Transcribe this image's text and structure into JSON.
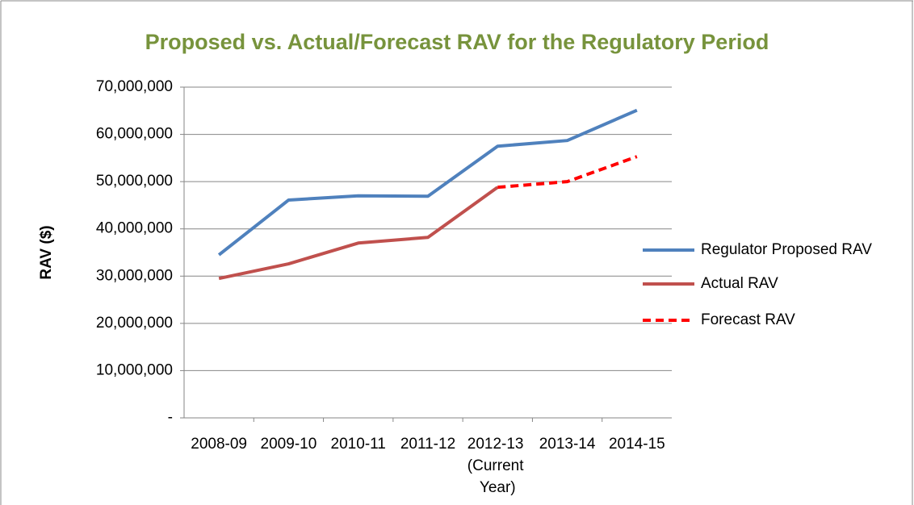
{
  "chart_data": {
    "type": "line",
    "title": "Proposed vs. Actual/Forecast RAV for the Regulatory Period",
    "y_label": "RAV ($)",
    "categories": [
      "2008-09",
      "2009-10",
      "2010-11",
      "2011-12",
      "2012-13 (Current Year)",
      "2013-14",
      "2014-15"
    ],
    "series": [
      {
        "name": "Regulator Proposed RAV",
        "color": "#4f81bd",
        "dashed": false,
        "values": [
          34500000,
          46100000,
          47000000,
          46900000,
          57500000,
          58700000,
          65100000
        ]
      },
      {
        "name": "Actual RAV",
        "color": "#c0504d",
        "dashed": false,
        "values": [
          29500000,
          32600000,
          37000000,
          38200000,
          48800000,
          null,
          null
        ]
      },
      {
        "name": "Forecast RAV",
        "color": "#ff0000",
        "dashed": true,
        "values": [
          null,
          null,
          null,
          null,
          48800000,
          50000000,
          55300000
        ]
      }
    ],
    "ylim": [
      0,
      70000000
    ],
    "yticks": [
      {
        "value": 0,
        "label": "-"
      },
      {
        "value": 10000000,
        "label": "10,000,000"
      },
      {
        "value": 20000000,
        "label": "20,000,000"
      },
      {
        "value": 30000000,
        "label": "30,000,000"
      },
      {
        "value": 40000000,
        "label": "40,000,000"
      },
      {
        "value": 50000000,
        "label": "50,000,000"
      },
      {
        "value": 60000000,
        "label": "60,000,000"
      },
      {
        "value": 70000000,
        "label": "70,000,000"
      }
    ],
    "grid": true,
    "legend": "right"
  }
}
